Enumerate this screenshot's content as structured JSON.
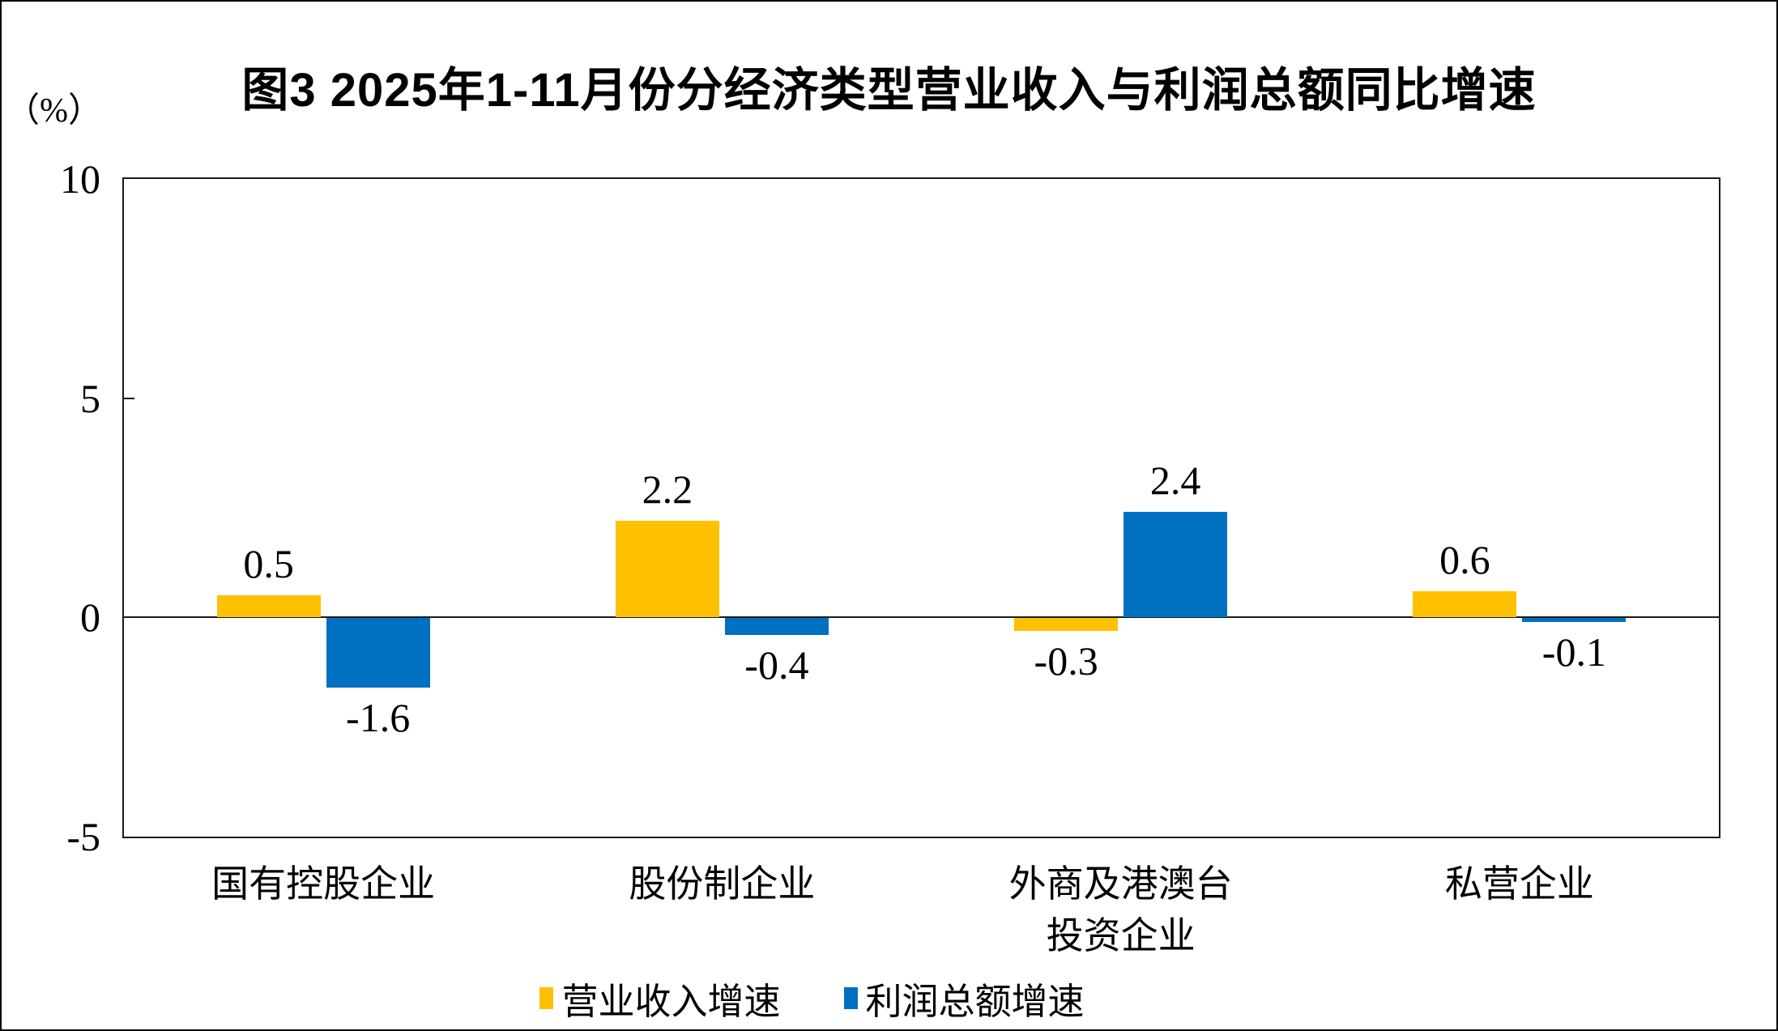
{
  "title": "图3  2025年1-11月份分经济类型营业收入与利润总额同比增速",
  "unit_label": "（%）",
  "chart_data": {
    "type": "bar",
    "categories": [
      "国有控股企业",
      "股份制企业",
      "外商及港澳台\n投资企业",
      "私营企业"
    ],
    "series": [
      {
        "name": "营业收入增速",
        "color": "#FFC000",
        "values": [
          0.5,
          2.2,
          -0.3,
          0.6
        ]
      },
      {
        "name": "利润总额增速",
        "color": "#0070C0",
        "values": [
          -1.6,
          -0.4,
          2.4,
          -0.1
        ]
      }
    ],
    "ylim": [
      -5,
      10
    ],
    "yticks": [
      10,
      5,
      0,
      -5
    ],
    "y_unit": "%",
    "grid": false,
    "legend_position": "bottom",
    "data_labels": true
  }
}
